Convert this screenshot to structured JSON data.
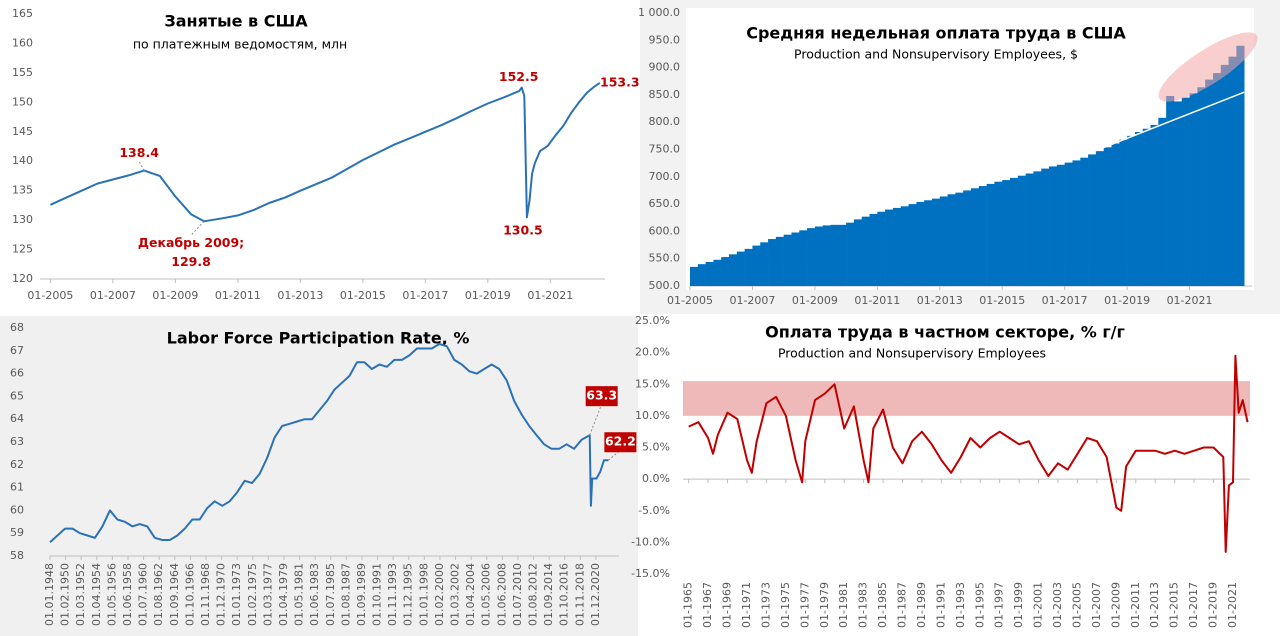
{
  "chart_data": [
    {
      "type": "line",
      "title": "Занятые в США",
      "subtitle": "по платежным ведомостям, млн",
      "color": "#2a72b5",
      "x": [
        "01-2005",
        "07-2005",
        "01-2006",
        "07-2006",
        "01-2007",
        "07-2007",
        "01-2008",
        "07-2008",
        "01-2009",
        "07-2009",
        "12-2009",
        "07-2010",
        "01-2011",
        "07-2011",
        "01-2012",
        "07-2012",
        "01-2013",
        "07-2013",
        "01-2014",
        "07-2014",
        "01-2015",
        "07-2015",
        "01-2016",
        "07-2016",
        "01-2017",
        "07-2017",
        "01-2018",
        "07-2018",
        "01-2019",
        "07-2019",
        "01-2020",
        "02-2020",
        "03-2020",
        "04-2020",
        "05-2020",
        "06-2020",
        "07-2020",
        "09-2020",
        "12-2020",
        "03-2021",
        "06-2021",
        "09-2021",
        "12-2021",
        "03-2022",
        "06-2022",
        "08-2022"
      ],
      "values": [
        132.6,
        133.8,
        135.0,
        136.2,
        136.9,
        137.6,
        138.4,
        137.5,
        134.0,
        131.0,
        129.8,
        130.3,
        130.8,
        131.7,
        132.9,
        133.8,
        135.0,
        136.1,
        137.2,
        138.7,
        140.2,
        141.5,
        142.8,
        143.9,
        145.0,
        146.1,
        147.3,
        148.6,
        149.8,
        150.8,
        151.9,
        152.5,
        151.1,
        130.5,
        133.3,
        137.9,
        139.6,
        141.7,
        142.6,
        144.4,
        146.0,
        148.2,
        150.0,
        151.6,
        152.7,
        153.3
      ],
      "xlim": [
        "09-2004",
        "10-2022"
      ],
      "xticks": [
        "01-2005",
        "01-2007",
        "01-2009",
        "01-2011",
        "01-2013",
        "01-2015",
        "01-2017",
        "01-2019",
        "01-2021"
      ],
      "ylim": [
        120,
        165
      ],
      "yticks": [
        120,
        125,
        130,
        135,
        140,
        145,
        150,
        155,
        160,
        165
      ],
      "annotations": [
        {
          "x": "01-2008",
          "value": 138.4,
          "label": "138.4"
        },
        {
          "x": "12-2009",
          "value": 129.8,
          "text": "Декабрь 2009;",
          "label": "129.8"
        },
        {
          "x": "02-2020",
          "value": 152.5,
          "label": "152.5"
        },
        {
          "x": "04-2020",
          "value": 130.5,
          "label": "130.5"
        },
        {
          "x": "08-2022",
          "value": 153.3,
          "label": "153.3"
        }
      ]
    },
    {
      "type": "bar",
      "title": "Средняя недельная оплата труда в США",
      "subtitle": "Production and Nonsupervisory Employees, $",
      "color": "#0070c0",
      "x": [
        "01-2005",
        "04-2005",
        "07-2005",
        "10-2005",
        "01-2006",
        "04-2006",
        "07-2006",
        "10-2006",
        "01-2007",
        "04-2007",
        "07-2007",
        "10-2007",
        "01-2008",
        "04-2008",
        "07-2008",
        "10-2008",
        "01-2009",
        "04-2009",
        "07-2009",
        "10-2009",
        "01-2010",
        "04-2010",
        "07-2010",
        "10-2010",
        "01-2011",
        "04-2011",
        "07-2011",
        "10-2011",
        "01-2012",
        "04-2012",
        "07-2012",
        "10-2012",
        "01-2013",
        "04-2013",
        "07-2013",
        "10-2013",
        "01-2014",
        "04-2014",
        "07-2014",
        "10-2014",
        "01-2015",
        "04-2015",
        "07-2015",
        "10-2015",
        "01-2016",
        "04-2016",
        "07-2016",
        "10-2016",
        "01-2017",
        "04-2017",
        "07-2017",
        "10-2017",
        "01-2018",
        "04-2018",
        "07-2018",
        "10-2018",
        "01-2019",
        "04-2019",
        "07-2019",
        "10-2019",
        "01-2020",
        "04-2020",
        "07-2020",
        "10-2020",
        "01-2021",
        "04-2021",
        "07-2021",
        "10-2021",
        "01-2022",
        "04-2022",
        "07-2022"
      ],
      "values": [
        535,
        540,
        544,
        548,
        553,
        558,
        563,
        568,
        574,
        580,
        586,
        590,
        594,
        598,
        602,
        606,
        609,
        611,
        612,
        612,
        616,
        622,
        627,
        632,
        636,
        640,
        643,
        646,
        650,
        654,
        657,
        660,
        664,
        668,
        671,
        675,
        679,
        683,
        687,
        691,
        694,
        698,
        702,
        706,
        710,
        715,
        719,
        722,
        726,
        730,
        735,
        741,
        747,
        754,
        761,
        768,
        775,
        782,
        788,
        795,
        808,
        848,
        838,
        845,
        853,
        864,
        878,
        890,
        905,
        920,
        940
      ],
      "trend": {
        "x": [
          "01-2018",
          "10-2022"
        ],
        "values": [
          748,
          855
        ],
        "color": "#ffffff"
      },
      "xlim": [
        "01-2005",
        "01-2023"
      ],
      "xticks": [
        "01-2005",
        "01-2007",
        "01-2009",
        "01-2011",
        "01-2013",
        "01-2015",
        "01-2017",
        "01-2019",
        "01-2021"
      ],
      "ylim": [
        500,
        1000
      ],
      "yticks": [
        {
          "value": 500,
          "label": "500.0"
        },
        {
          "value": 550,
          "label": "550.0"
        },
        {
          "value": 600,
          "label": "600.0"
        },
        {
          "value": 650,
          "label": "650.0"
        },
        {
          "value": 700,
          "label": "700.0"
        },
        {
          "value": 750,
          "label": "750.0"
        },
        {
          "value": 800,
          "label": "800.0"
        },
        {
          "value": 850,
          "label": "850.0"
        },
        {
          "value": 900,
          "label": "900.0"
        },
        {
          "value": 950,
          "label": "950.0"
        },
        {
          "value": 1000,
          "label": "1 000.0"
        }
      ]
    },
    {
      "type": "line",
      "title": "Labor Force Participation Rate, %",
      "color": "#2a72b5",
      "x": [
        "01.01.1948",
        "01.01.1949",
        "01.01.1950",
        "01.01.1951",
        "01.01.1952",
        "01.01.1953",
        "01.01.1954",
        "01.01.1955",
        "01.01.1956",
        "01.01.1957",
        "01.01.1958",
        "01.01.1959",
        "01.01.1960",
        "01.01.1961",
        "01.01.1962",
        "01.01.1963",
        "01.01.1964",
        "01.01.1965",
        "01.01.1966",
        "01.01.1967",
        "01.01.1968",
        "01.01.1969",
        "01.01.1970",
        "01.01.1971",
        "01.01.1972",
        "01.01.1973",
        "01.01.1974",
        "01.01.1975",
        "01.01.1976",
        "01.01.1977",
        "01.01.1978",
        "01.01.1979",
        "01.01.1980",
        "01.01.1981",
        "01.01.1982",
        "01.01.1983",
        "01.01.1984",
        "01.01.1985",
        "01.01.1986",
        "01.01.1987",
        "01.01.1988",
        "01.01.1989",
        "01.01.1990",
        "01.01.1991",
        "01.01.1992",
        "01.01.1993",
        "01.01.1994",
        "01.01.1995",
        "01.01.1996",
        "01.01.1997",
        "01.01.1998",
        "01.01.1999",
        "01.01.2000",
        "01.01.2001",
        "01.01.2002",
        "01.01.2003",
        "01.01.2004",
        "01.01.2005",
        "01.01.2006",
        "01.01.2007",
        "01.01.2008",
        "01.01.2009",
        "01.01.2010",
        "01.01.2011",
        "01.01.2012",
        "01.01.2013",
        "01.01.2014",
        "01.01.2015",
        "01.01.2016",
        "01.01.2017",
        "01.01.2018",
        "01.01.2019",
        "01.02.2020",
        "01.04.2020",
        "01.06.2020",
        "01.01.2021",
        "01.07.2021",
        "01.01.2022",
        "01.08.2022"
      ],
      "values": [
        58.6,
        58.9,
        59.2,
        59.2,
        59.0,
        58.9,
        58.8,
        59.3,
        60.0,
        59.6,
        59.5,
        59.3,
        59.4,
        59.3,
        58.8,
        58.7,
        58.7,
        58.9,
        59.2,
        59.6,
        59.6,
        60.1,
        60.4,
        60.2,
        60.4,
        60.8,
        61.3,
        61.2,
        61.6,
        62.3,
        63.2,
        63.7,
        63.8,
        63.9,
        64.0,
        64.0,
        64.4,
        64.8,
        65.3,
        65.6,
        65.9,
        66.5,
        66.5,
        66.2,
        66.4,
        66.3,
        66.6,
        66.6,
        66.8,
        67.1,
        67.1,
        67.1,
        67.3,
        67.2,
        66.6,
        66.4,
        66.1,
        66.0,
        66.2,
        66.4,
        66.2,
        65.7,
        64.8,
        64.2,
        63.7,
        63.3,
        62.9,
        62.7,
        62.7,
        62.9,
        62.7,
        63.1,
        63.3,
        60.2,
        61.4,
        61.4,
        61.7,
        62.2,
        62.2
      ],
      "xlim": [
        "01.01.1948",
        "01.01.2024"
      ],
      "xticks": [
        "01.01.1948",
        "01.02.1950",
        "01.03.1952",
        "01.04.1954",
        "01.05.1956",
        "01.06.1958",
        "01.07.1960",
        "01.08.1962",
        "01.09.1964",
        "01.10.1966",
        "01.11.1968",
        "01.12.1970",
        "01.01.1973",
        "01.02.1975",
        "01.03.1977",
        "01.04.1979",
        "01.05.1981",
        "01.06.1983",
        "01.07.1985",
        "01.08.1987",
        "01.09.1989",
        "01.10.1991",
        "01.11.1993",
        "01.12.1995",
        "01.01.1998",
        "01.02.2000",
        "01.03.2002",
        "01.04.2004",
        "01.05.2006",
        "01.06.2008",
        "01.07.2010",
        "01.08.2012",
        "01.09.2014",
        "01.10.2016",
        "01.11.2018",
        "01.12.2020"
      ],
      "ylim": [
        58,
        68
      ],
      "yticks": [
        58,
        59,
        60,
        61,
        62,
        63,
        64,
        65,
        66,
        67,
        68
      ],
      "annotations": [
        {
          "x": "01.02.2020",
          "value": 63.3,
          "label": "63.3"
        },
        {
          "x": "01.08.2022",
          "value": 62.2,
          "label": "62.2"
        }
      ]
    },
    {
      "type": "line",
      "title": "Оплата труда в частном секторе, % г/г",
      "subtitle": "Production and Nonsupervisory Employees",
      "color": "#c00000",
      "x": [
        "01-1965",
        "01-1966",
        "01-1967",
        "07-1967",
        "01-1968",
        "01-1969",
        "01-1970",
        "01-1971",
        "07-1971",
        "01-1972",
        "01-1973",
        "01-1974",
        "01-1975",
        "01-1976",
        "09-1976",
        "01-1977",
        "01-1978",
        "01-1979",
        "01-1980",
        "01-1981",
        "01-1982",
        "01-1983",
        "07-1983",
        "01-1984",
        "01-1985",
        "01-1986",
        "01-1987",
        "01-1988",
        "01-1989",
        "01-1990",
        "01-1991",
        "01-1992",
        "01-1993",
        "01-1994",
        "01-1995",
        "01-1996",
        "01-1997",
        "01-1998",
        "01-1999",
        "01-2000",
        "01-2001",
        "01-2002",
        "01-2003",
        "01-2004",
        "01-2005",
        "01-2006",
        "01-2007",
        "01-2008",
        "01-2009",
        "07-2009",
        "01-2010",
        "01-2011",
        "01-2012",
        "01-2013",
        "01-2014",
        "01-2015",
        "01-2016",
        "01-2017",
        "01-2018",
        "01-2019",
        "01-2020",
        "04-2020",
        "08-2020",
        "01-2021",
        "04-2021",
        "08-2021",
        "01-2022",
        "07-2022"
      ],
      "values": [
        8.3,
        9.0,
        6.5,
        4.0,
        7.0,
        10.5,
        9.5,
        3.0,
        1.0,
        6.0,
        12.0,
        13.0,
        10.0,
        3.0,
        -0.5,
        6.0,
        12.5,
        13.5,
        15.0,
        8.0,
        11.5,
        3.0,
        -0.5,
        8.0,
        11.0,
        5.0,
        2.5,
        6.0,
        7.5,
        5.5,
        3.0,
        1.0,
        3.5,
        6.5,
        5.0,
        6.5,
        7.5,
        6.5,
        5.5,
        6.0,
        3.0,
        0.5,
        2.5,
        1.5,
        4.0,
        6.5,
        6.0,
        3.5,
        -4.5,
        -5.0,
        2.0,
        4.5,
        4.5,
        4.5,
        4.0,
        4.5,
        4.0,
        4.5,
        5.0,
        5.0,
        3.5,
        -11.5,
        -1.0,
        -0.5,
        19.5,
        10.5,
        12.5,
        9.0
      ],
      "highlight": {
        "from": 10,
        "to": 15.5,
        "color": "#efb9b9"
      },
      "xlim": [
        "06-1964",
        "10-2022"
      ],
      "xticks": [
        "01-1965",
        "01-1967",
        "01-1969",
        "01-1971",
        "01-1973",
        "01-1975",
        "01-1977",
        "01-1979",
        "01-1981",
        "01-1983",
        "01-1985",
        "01-1987",
        "01-1989",
        "01-1991",
        "01-1993",
        "01-1995",
        "01-1997",
        "01-1999",
        "01-2001",
        "01-2003",
        "01-2005",
        "01-2007",
        "01-2009",
        "01-2011",
        "01-2013",
        "01-2015",
        "01-2017",
        "01-2019",
        "01-2021"
      ],
      "ylim": [
        -15,
        25
      ],
      "yticks": [
        {
          "value": -15,
          "label": "-15.0%"
        },
        {
          "value": -10,
          "label": "-10.0%"
        },
        {
          "value": -5,
          "label": "-5.0%"
        },
        {
          "value": 0,
          "label": "0.0%"
        },
        {
          "value": 5,
          "label": "5.0%"
        },
        {
          "value": 10,
          "label": "10.0%"
        },
        {
          "value": 15,
          "label": "15.0%"
        },
        {
          "value": 20,
          "label": "20.0%"
        },
        {
          "value": 25,
          "label": "25.0%"
        }
      ]
    }
  ]
}
